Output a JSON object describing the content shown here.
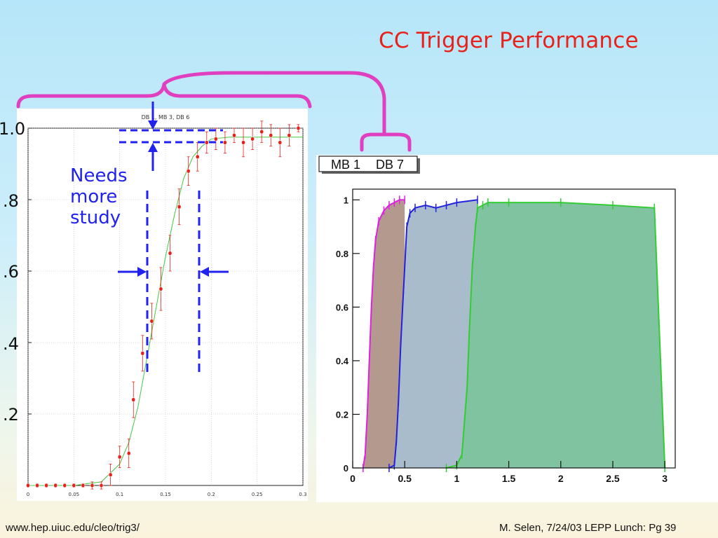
{
  "slide": {
    "title": "CC Trigger Performance",
    "note": "Needs more study",
    "note_lines": [
      "Needs",
      "more",
      "study"
    ],
    "footer_url": "www.hep.uiuc.edu/cleo/trig3/",
    "footer_credit": "M. Selen, 7/24/03 LEPP Lunch: Pg 39",
    "colors": {
      "title": "#e8211b",
      "brace": "#e040c0",
      "annotation": "#2222ee"
    }
  },
  "chart_data": [
    {
      "type": "scatter",
      "title": "DB 1, MB 3, DB 6",
      "ylim": [
        0,
        1.0
      ],
      "xlim": [
        0,
        0.3
      ],
      "y_ticks": [
        "1.0",
        ".8",
        ".6",
        ".4",
        ".2"
      ],
      "y_tick_values": [
        1.0,
        0.8,
        0.6,
        0.4,
        0.2
      ],
      "x_ticks": [
        "0",
        "0.05",
        "0.1",
        "0.15",
        "0.2",
        "0.25",
        "0.3"
      ],
      "x_tick_values": [
        0,
        0.05,
        0.1,
        0.15,
        0.2,
        0.25,
        0.3
      ],
      "grid": true,
      "series": [
        {
          "color": "#e8211b",
          "points": [
            {
              "x": 0.0,
              "y": 0.0,
              "err": 0.005
            },
            {
              "x": 0.01,
              "y": 0.0,
              "err": 0.005
            },
            {
              "x": 0.02,
              "y": 0.0,
              "err": 0.005
            },
            {
              "x": 0.03,
              "y": 0.0,
              "err": 0.005
            },
            {
              "x": 0.04,
              "y": 0.0,
              "err": 0.005
            },
            {
              "x": 0.05,
              "y": 0.0,
              "err": 0.005
            },
            {
              "x": 0.06,
              "y": 0.0,
              "err": 0.005
            },
            {
              "x": 0.07,
              "y": 0.0,
              "err": 0.01
            },
            {
              "x": 0.08,
              "y": 0.0,
              "err": 0.01
            },
            {
              "x": 0.09,
              "y": 0.03,
              "err": 0.03
            },
            {
              "x": 0.1,
              "y": 0.08,
              "err": 0.03
            },
            {
              "x": 0.11,
              "y": 0.09,
              "err": 0.04
            },
            {
              "x": 0.115,
              "y": 0.24,
              "err": 0.05
            },
            {
              "x": 0.125,
              "y": 0.37,
              "err": 0.05
            },
            {
              "x": 0.135,
              "y": 0.46,
              "err": 0.05
            },
            {
              "x": 0.145,
              "y": 0.55,
              "err": 0.06
            },
            {
              "x": 0.155,
              "y": 0.65,
              "err": 0.05
            },
            {
              "x": 0.165,
              "y": 0.78,
              "err": 0.05
            },
            {
              "x": 0.175,
              "y": 0.88,
              "err": 0.04
            },
            {
              "x": 0.185,
              "y": 0.92,
              "err": 0.04
            },
            {
              "x": 0.195,
              "y": 0.96,
              "err": 0.03
            },
            {
              "x": 0.205,
              "y": 0.97,
              "err": 0.03
            },
            {
              "x": 0.215,
              "y": 0.96,
              "err": 0.03
            },
            {
              "x": 0.225,
              "y": 0.98,
              "err": 0.02
            },
            {
              "x": 0.235,
              "y": 0.96,
              "err": 0.04
            },
            {
              "x": 0.245,
              "y": 0.97,
              "err": 0.03
            },
            {
              "x": 0.255,
              "y": 0.99,
              "err": 0.03
            },
            {
              "x": 0.265,
              "y": 0.98,
              "err": 0.03
            },
            {
              "x": 0.275,
              "y": 0.96,
              "err": 0.04
            },
            {
              "x": 0.285,
              "y": 0.98,
              "err": 0.03
            },
            {
              "x": 0.295,
              "y": 1.0,
              "err": 0.01
            }
          ]
        },
        {
          "color": "#44c844",
          "type": "line",
          "x": [
            0.0,
            0.05,
            0.08,
            0.1,
            0.11,
            0.12,
            0.13,
            0.14,
            0.15,
            0.16,
            0.17,
            0.18,
            0.19,
            0.2,
            0.22,
            0.25,
            0.3
          ],
          "y": [
            0.0,
            0.0,
            0.01,
            0.06,
            0.12,
            0.22,
            0.36,
            0.5,
            0.64,
            0.76,
            0.86,
            0.92,
            0.95,
            0.97,
            0.975,
            0.975,
            0.975
          ]
        }
      ]
    },
    {
      "type": "area",
      "legend": [
        "MB 1",
        "DB 7"
      ],
      "xlim": [
        0,
        3.1
      ],
      "ylim": [
        0,
        1.0
      ],
      "x_ticks": [
        "0",
        "0.5",
        "1",
        "1.5",
        "2",
        "2.5",
        "3"
      ],
      "x_tick_values": [
        0,
        0.5,
        1,
        1.5,
        2,
        2.5,
        3
      ],
      "y_ticks": [
        "0",
        "0.2",
        "0.4",
        "0.6",
        "0.8",
        "1"
      ],
      "y_tick_values": [
        0,
        0.2,
        0.4,
        0.6,
        0.8,
        1
      ],
      "series": [
        {
          "color": "#e020e0",
          "fill": "#b49a8e",
          "x": [
            0.1,
            0.12,
            0.14,
            0.16,
            0.18,
            0.2,
            0.22,
            0.25,
            0.3,
            0.35,
            0.4,
            0.45,
            0.5
          ],
          "y": [
            0.0,
            0.05,
            0.2,
            0.4,
            0.6,
            0.75,
            0.85,
            0.92,
            0.96,
            0.98,
            0.99,
            1.0,
            1.0
          ]
        },
        {
          "color": "#2222dd",
          "fill": "#a9bccb",
          "x": [
            0.35,
            0.4,
            0.42,
            0.44,
            0.46,
            0.48,
            0.5,
            0.52,
            0.55,
            0.6,
            0.7,
            0.8,
            0.9,
            1.0,
            1.2
          ],
          "y": [
            0.0,
            0.01,
            0.1,
            0.25,
            0.45,
            0.6,
            0.75,
            0.9,
            0.95,
            0.97,
            0.98,
            0.97,
            0.98,
            0.99,
            1.0
          ]
        },
        {
          "color": "#33cc33",
          "fill": "#7fc3a0",
          "x": [
            0.9,
            1.0,
            1.05,
            1.1,
            1.12,
            1.15,
            1.18,
            1.2,
            1.25,
            1.3,
            1.5,
            2.0,
            2.5,
            2.9,
            3.0
          ],
          "y": [
            0.0,
            0.01,
            0.05,
            0.3,
            0.5,
            0.75,
            0.9,
            0.97,
            0.98,
            0.99,
            0.99,
            0.99,
            0.98,
            0.97,
            0.0
          ]
        }
      ]
    }
  ]
}
